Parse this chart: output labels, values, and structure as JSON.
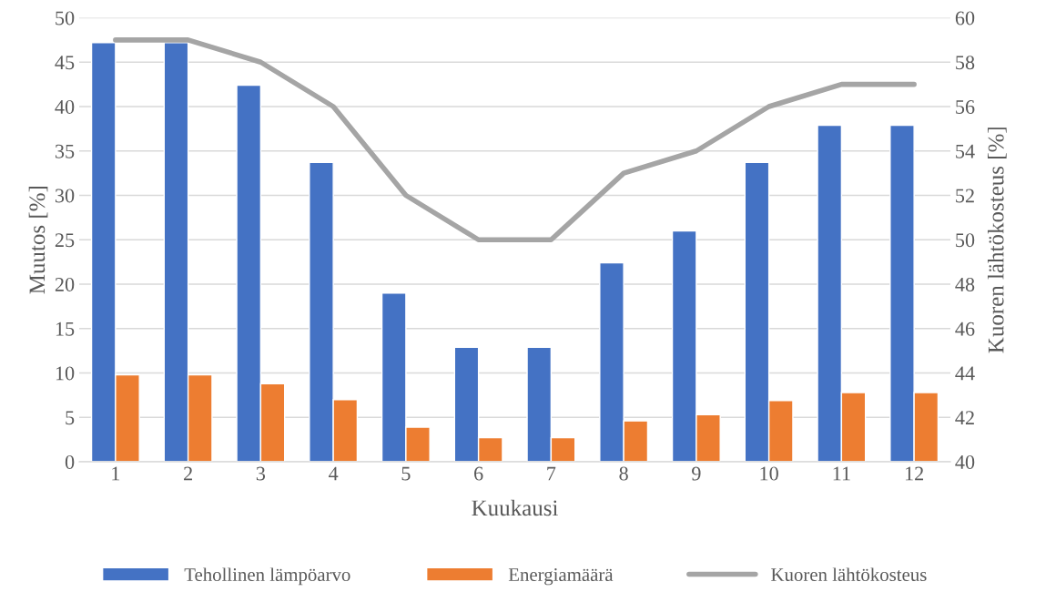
{
  "chart_data": {
    "type": "bar",
    "xlabel": "Kuukausi",
    "ylabel": "Muutos [%]",
    "y2label": "Kuoren lähtökosteus [%]",
    "categories": [
      "1",
      "2",
      "3",
      "4",
      "5",
      "6",
      "7",
      "8",
      "9",
      "10",
      "11",
      "12"
    ],
    "series": [
      {
        "name": "Tehollinen lämpöarvo",
        "color": "#4472c4",
        "values": [
          47.2,
          47.2,
          42.4,
          33.7,
          19.0,
          12.9,
          12.9,
          22.4,
          26.0,
          33.7,
          37.9,
          37.9
        ]
      },
      {
        "name": "Energiamäärä",
        "color": "#ed7d31",
        "values": [
          9.8,
          9.8,
          8.8,
          7.0,
          3.9,
          2.7,
          2.7,
          4.6,
          5.3,
          6.9,
          7.8,
          7.8
        ]
      },
      {
        "name": "Kuoren lähtökosteus",
        "color": "#a5a5a5",
        "type": "line",
        "axis": "y2",
        "values": [
          59,
          59,
          58,
          56,
          52,
          50,
          50,
          53,
          54,
          56,
          57,
          57
        ]
      }
    ],
    "ylim": [
      0,
      50
    ],
    "yticks": [
      0,
      5,
      10,
      15,
      20,
      25,
      30,
      35,
      40,
      45,
      50
    ],
    "y2lim": [
      40,
      60
    ],
    "y2ticks": [
      40,
      42,
      44,
      46,
      48,
      50,
      52,
      54,
      56,
      58,
      60
    ],
    "grid": "y",
    "legend": "bottom",
    "marker": "none",
    "line_style": "solid"
  }
}
